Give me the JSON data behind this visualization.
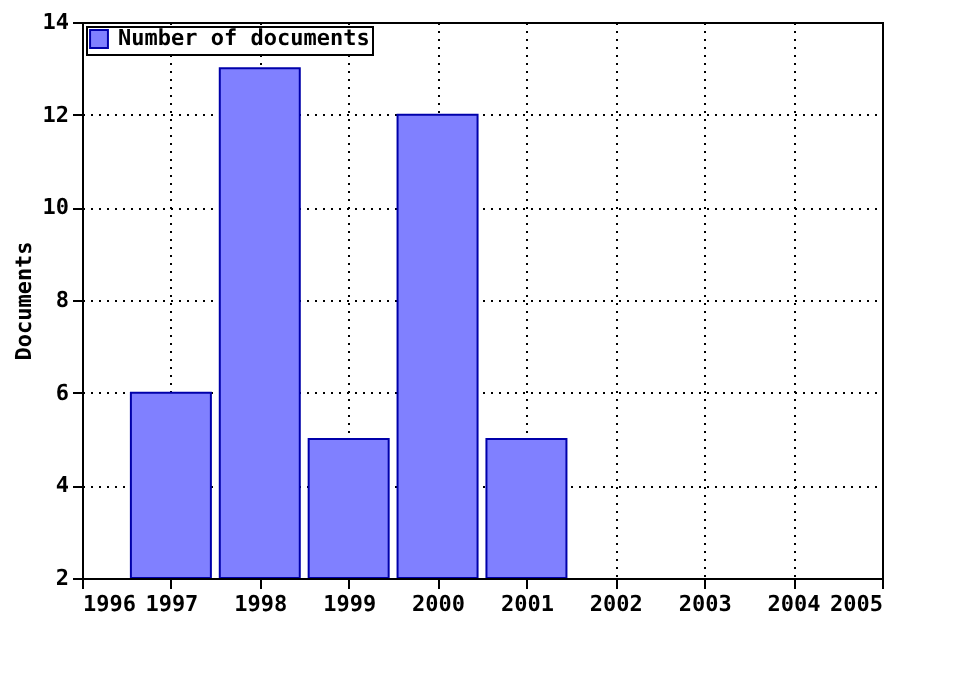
{
  "chart_data": {
    "type": "bar",
    "ylabel": "Documents",
    "x": [
      1997,
      1998,
      1999,
      2000,
      2001
    ],
    "series": [
      {
        "name": "Number of documents",
        "color": "#8080ff",
        "values": [
          6,
          13,
          5,
          12,
          5
        ]
      }
    ],
    "xlim": [
      1996,
      2005
    ],
    "xticks": [
      1996,
      1997,
      1998,
      1999,
      2000,
      2001,
      2002,
      2003,
      2004,
      2005
    ],
    "ylim": [
      2,
      14
    ],
    "yticks": [
      2,
      4,
      6,
      8,
      10,
      12,
      14
    ],
    "grid": true,
    "legend": "top left"
  }
}
